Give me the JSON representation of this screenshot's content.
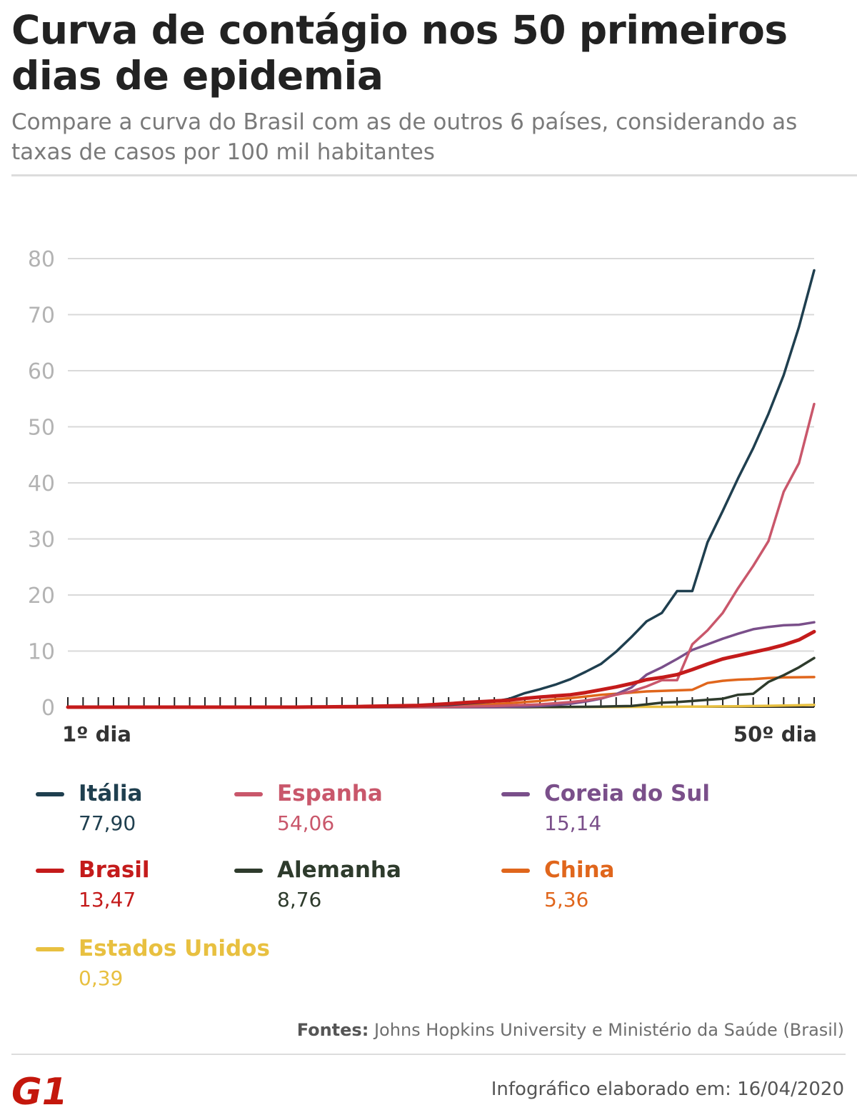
{
  "header": {
    "title": "Curva de contágio nos 50 primeiros dias de epidemia",
    "subtitle": "Compare a curva do Brasil com as de outros 6 países, considerando as taxas de casos por 100 mil habitantes"
  },
  "chart_data": {
    "type": "line",
    "x_label_start": "1º dia",
    "x_label_end": "50º dia",
    "x": [
      1,
      2,
      3,
      4,
      5,
      6,
      7,
      8,
      9,
      10,
      11,
      12,
      13,
      14,
      15,
      16,
      17,
      18,
      19,
      20,
      21,
      22,
      23,
      24,
      25,
      26,
      27,
      28,
      29,
      30,
      31,
      32,
      33,
      34,
      35,
      36,
      37,
      38,
      39,
      40,
      41,
      42,
      43,
      44,
      45,
      46,
      47,
      48,
      49,
      50
    ],
    "xlim": [
      1,
      50
    ],
    "ylim": [
      0,
      80
    ],
    "yticks": [
      0,
      10,
      20,
      30,
      40,
      50,
      60,
      70,
      80
    ],
    "grid": true,
    "series": [
      {
        "name": "Itália",
        "color": "#1f3f4f",
        "final": "77,90",
        "values": [
          0,
          0,
          0,
          0,
          0,
          0,
          0,
          0,
          0,
          0,
          0,
          0,
          0,
          0,
          0,
          0,
          0,
          0,
          0,
          0.02,
          0.05,
          0.08,
          0.12,
          0.2,
          0.3,
          0.4,
          0.6,
          0.8,
          1.0,
          1.5,
          2.5,
          3.2,
          4.0,
          5.0,
          6.3,
          7.7,
          9.9,
          12.5,
          15.3,
          16.8,
          20.7,
          20.7,
          29.4,
          35.0,
          40.8,
          46.2,
          52.3,
          59.2,
          67.8,
          77.9
        ]
      },
      {
        "name": "Espanha",
        "color": "#c9576b",
        "final": "54,06",
        "values": [
          0,
          0,
          0,
          0,
          0,
          0,
          0,
          0,
          0,
          0,
          0,
          0,
          0,
          0,
          0,
          0,
          0,
          0,
          0,
          0,
          0,
          0,
          0,
          0,
          0.02,
          0.05,
          0.1,
          0.15,
          0.2,
          0.3,
          0.4,
          0.5,
          0.7,
          0.9,
          1.2,
          1.6,
          2.2,
          2.8,
          3.7,
          4.8,
          4.8,
          11.2,
          13.7,
          16.8,
          21.2,
          25.2,
          29.6,
          38.4,
          43.5,
          54.06
        ]
      },
      {
        "name": "Coreia do Sul",
        "color": "#7a4f8a",
        "final": "15,14",
        "values": [
          0,
          0,
          0,
          0,
          0,
          0,
          0,
          0,
          0,
          0,
          0,
          0,
          0,
          0,
          0,
          0,
          0,
          0,
          0,
          0,
          0,
          0,
          0,
          0,
          0,
          0,
          0,
          0,
          0,
          0.05,
          0.1,
          0.2,
          0.4,
          0.6,
          1.0,
          1.5,
          2.3,
          3.5,
          5.8,
          7.1,
          8.6,
          10.2,
          11.2,
          12.2,
          13.1,
          13.9,
          14.3,
          14.6,
          14.7,
          15.14
        ]
      },
      {
        "name": "Brasil",
        "color": "#c41b1b",
        "final": "13,47",
        "values": [
          0,
          0,
          0,
          0,
          0,
          0,
          0,
          0,
          0,
          0,
          0,
          0,
          0,
          0,
          0,
          0,
          0.02,
          0.05,
          0.08,
          0.1,
          0.15,
          0.2,
          0.25,
          0.3,
          0.45,
          0.6,
          0.8,
          0.95,
          1.1,
          1.25,
          1.55,
          1.8,
          2.0,
          2.2,
          2.6,
          3.1,
          3.6,
          4.2,
          4.9,
          5.3,
          5.8,
          6.7,
          7.7,
          8.6,
          9.2,
          9.8,
          10.4,
          11.1,
          12.0,
          13.47
        ]
      },
      {
        "name": "Alemanha",
        "color": "#2e3b2c",
        "final": "8,76",
        "values": [
          0,
          0,
          0,
          0,
          0,
          0,
          0,
          0,
          0,
          0,
          0,
          0,
          0,
          0,
          0,
          0,
          0,
          0,
          0,
          0,
          0,
          0,
          0,
          0,
          0,
          0,
          0,
          0,
          0,
          0,
          0,
          0.02,
          0.03,
          0.05,
          0.07,
          0.1,
          0.15,
          0.2,
          0.5,
          0.8,
          0.9,
          1.1,
          1.3,
          1.5,
          2.2,
          2.4,
          4.5,
          5.7,
          7.1,
          8.76
        ]
      },
      {
        "name": "China",
        "color": "#e0661c",
        "final": "5,36",
        "values": [
          0,
          0,
          0,
          0,
          0,
          0,
          0,
          0,
          0,
          0,
          0,
          0,
          0,
          0,
          0,
          0,
          0,
          0,
          0,
          0,
          0,
          0,
          0,
          0.05,
          0.1,
          0.2,
          0.3,
          0.4,
          0.55,
          0.7,
          0.9,
          1.1,
          1.4,
          1.6,
          1.9,
          2.2,
          2.4,
          2.6,
          2.8,
          2.9,
          3.0,
          3.1,
          4.3,
          4.7,
          4.9,
          5.0,
          5.2,
          5.3,
          5.34,
          5.36
        ]
      },
      {
        "name": "Estados Unidos",
        "color": "#e8c040",
        "final": "0,39",
        "values": [
          0,
          0,
          0,
          0,
          0,
          0,
          0,
          0,
          0,
          0,
          0,
          0,
          0,
          0,
          0,
          0,
          0,
          0,
          0,
          0,
          0,
          0,
          0,
          0,
          0,
          0,
          0,
          0,
          0,
          0,
          0,
          0,
          0,
          0.01,
          0.02,
          0.03,
          0.04,
          0.05,
          0.06,
          0.07,
          0.08,
          0.1,
          0.12,
          0.14,
          0.17,
          0.2,
          0.24,
          0.28,
          0.33,
          0.39
        ]
      }
    ]
  },
  "footer": {
    "source_label": "Fontes:",
    "source_text": "Johns Hopkins University e Ministério da Saúde (Brasil)",
    "date_text": "Infográfico elaborado em: 16/04/2020",
    "logo": "G1"
  }
}
